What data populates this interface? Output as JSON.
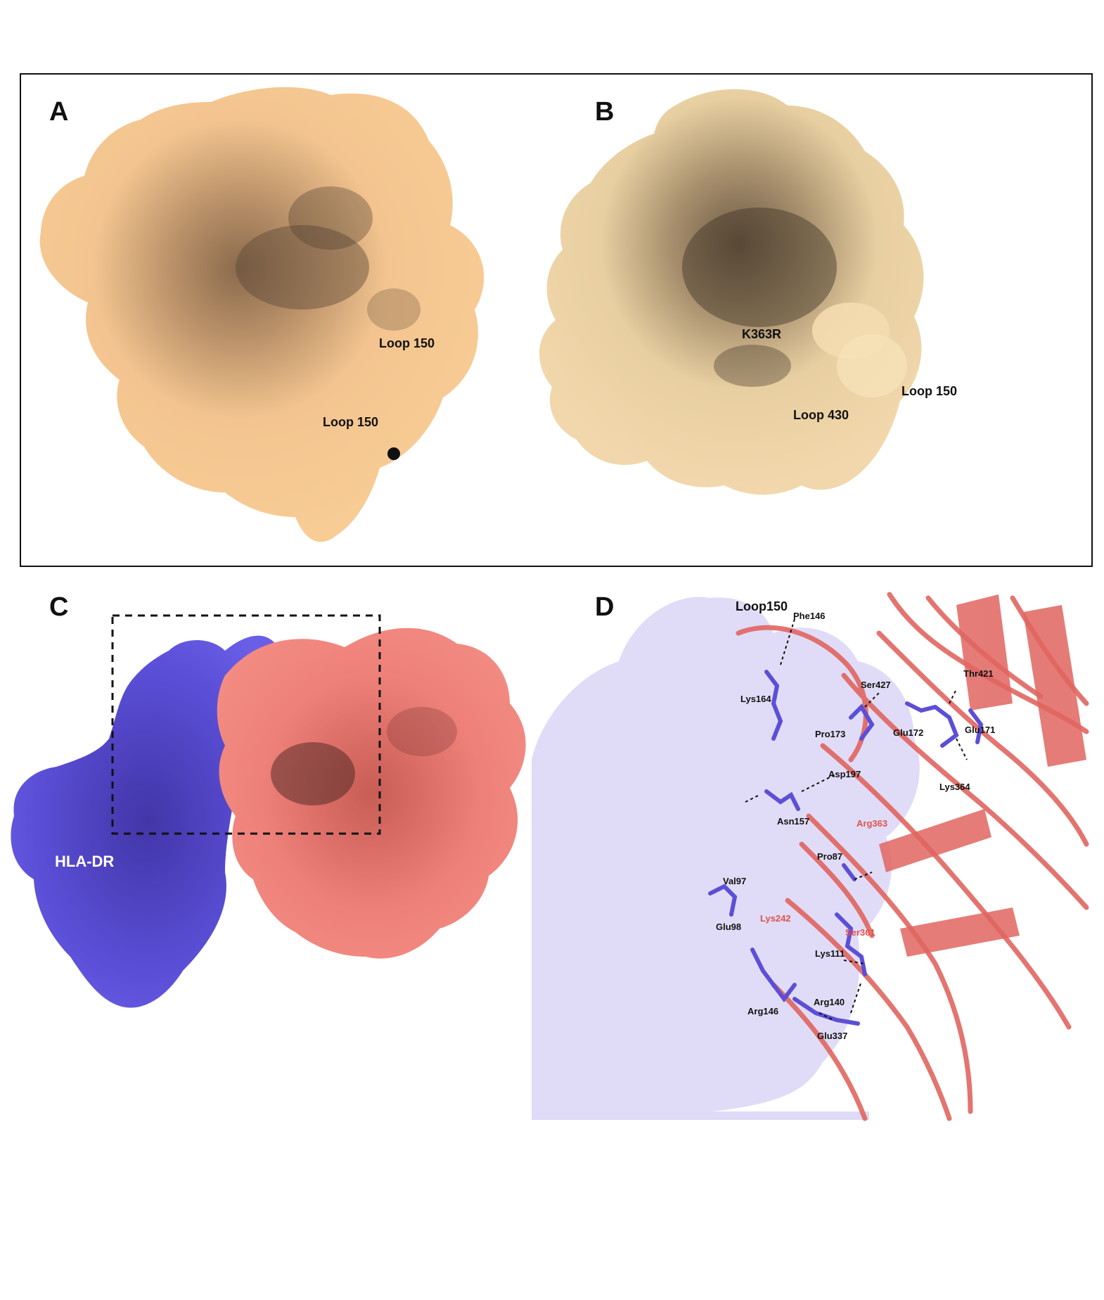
{
  "panels": {
    "a": {
      "letter": "A",
      "labels": [
        "Loop 150",
        "Loop 150"
      ]
    },
    "b": {
      "letter": "B",
      "labels": [
        "K363R",
        "Loop 430",
        "Loop 150"
      ]
    },
    "c": {
      "letter": "C",
      "labels": [
        "HLA-DR"
      ]
    },
    "d": {
      "letter": "D",
      "title": "Loop150",
      "residues_black": [
        "Phe146",
        "Lys164",
        "Ser427",
        "Thr421",
        "Pro173",
        "Glu172",
        "Glu171",
        "Asp197",
        "Lys364",
        "Asn157",
        "Pro87",
        "Val97",
        "Glu98",
        "Lys111",
        "Arg140",
        "Arg146",
        "Glu337"
      ],
      "residues_red": [
        "Arg363",
        "Lys242",
        "Ser361"
      ]
    }
  },
  "colors": {
    "surface_a": "#f7c890",
    "surface_b": "#eed3a6",
    "hla_dr": "#5c4fd6",
    "partner": "#ea7a72",
    "ribbon": "#e16560",
    "ghost_surface": "#dcd8f7",
    "label_red": "#e0524a"
  }
}
